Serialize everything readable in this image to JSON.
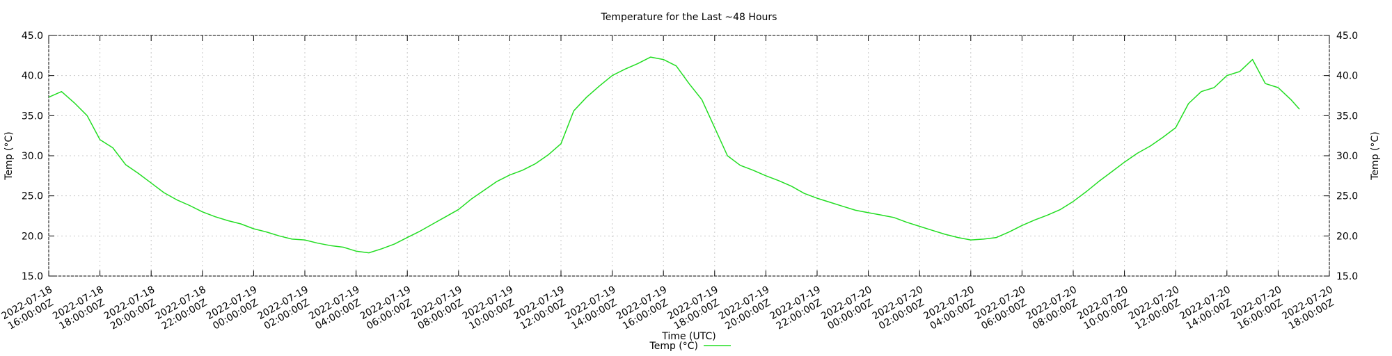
{
  "chart_data": {
    "type": "line",
    "title": "Temperature for the Last ~48 Hours",
    "x_label": "Time (UTC)",
    "y_label": "Temp (°C)",
    "y2_label": "Temp (°C)",
    "xlim": [
      "2022-07-18 16:00:00Z",
      "2022-07-20 18:00:00Z"
    ],
    "xticks": [
      "2022-07-18 16:00:00Z",
      "2022-07-18 18:00:00Z",
      "2022-07-18 20:00:00Z",
      "2022-07-18 22:00:00Z",
      "2022-07-19 00:00:00Z",
      "2022-07-19 02:00:00Z",
      "2022-07-19 04:00:00Z",
      "2022-07-19 06:00:00Z",
      "2022-07-19 08:00:00Z",
      "2022-07-19 10:00:00Z",
      "2022-07-19 12:00:00Z",
      "2022-07-19 14:00:00Z",
      "2022-07-19 16:00:00Z",
      "2022-07-19 18:00:00Z",
      "2022-07-19 20:00:00Z",
      "2022-07-19 22:00:00Z",
      "2022-07-20 00:00:00Z",
      "2022-07-20 02:00:00Z",
      "2022-07-20 04:00:00Z",
      "2022-07-20 06:00:00Z",
      "2022-07-20 08:00:00Z",
      "2022-07-20 10:00:00Z",
      "2022-07-20 12:00:00Z",
      "2022-07-20 14:00:00Z",
      "2022-07-20 16:00:00Z",
      "2022-07-20 18:00:00Z"
    ],
    "ylim": [
      15,
      45
    ],
    "yticks": [
      {
        "value": 15,
        "label": "15.0"
      },
      {
        "value": 20,
        "label": "20.0"
      },
      {
        "value": 25,
        "label": "25.0"
      },
      {
        "value": 30,
        "label": "30.0"
      },
      {
        "value": 35,
        "label": "35.0"
      },
      {
        "value": 40,
        "label": "40.0"
      },
      {
        "value": 45,
        "label": "45.0"
      }
    ],
    "y2lim": [
      15,
      45
    ],
    "y2ticks": [
      {
        "value": 15,
        "label": "15.0"
      },
      {
        "value": 20,
        "label": "20.0"
      },
      {
        "value": 25,
        "label": "25.0"
      },
      {
        "value": 30,
        "label": "30.0"
      },
      {
        "value": 35,
        "label": "35.0"
      },
      {
        "value": 40,
        "label": "40.0"
      },
      {
        "value": 45,
        "label": "45.0"
      }
    ],
    "grid": true,
    "x": [
      "2022-07-18 16:00:00Z",
      "2022-07-18 16:30:00Z",
      "2022-07-18 17:00:00Z",
      "2022-07-18 17:30:00Z",
      "2022-07-18 18:00:00Z",
      "2022-07-18 18:30:00Z",
      "2022-07-18 19:00:00Z",
      "2022-07-18 19:30:00Z",
      "2022-07-18 20:00:00Z",
      "2022-07-18 20:30:00Z",
      "2022-07-18 21:00:00Z",
      "2022-07-18 21:30:00Z",
      "2022-07-18 22:00:00Z",
      "2022-07-18 22:30:00Z",
      "2022-07-18 23:00:00Z",
      "2022-07-18 23:30:00Z",
      "2022-07-19 00:00:00Z",
      "2022-07-19 00:30:00Z",
      "2022-07-19 01:00:00Z",
      "2022-07-19 01:30:00Z",
      "2022-07-19 02:00:00Z",
      "2022-07-19 02:30:00Z",
      "2022-07-19 03:00:00Z",
      "2022-07-19 03:30:00Z",
      "2022-07-19 04:00:00Z",
      "2022-07-19 04:30:00Z",
      "2022-07-19 05:00:00Z",
      "2022-07-19 05:30:00Z",
      "2022-07-19 06:00:00Z",
      "2022-07-19 06:30:00Z",
      "2022-07-19 07:00:00Z",
      "2022-07-19 07:30:00Z",
      "2022-07-19 08:00:00Z",
      "2022-07-19 08:30:00Z",
      "2022-07-19 09:00:00Z",
      "2022-07-19 09:30:00Z",
      "2022-07-19 10:00:00Z",
      "2022-07-19 10:30:00Z",
      "2022-07-19 11:00:00Z",
      "2022-07-19 11:30:00Z",
      "2022-07-19 12:00:00Z",
      "2022-07-19 12:30:00Z",
      "2022-07-19 13:00:00Z",
      "2022-07-19 13:30:00Z",
      "2022-07-19 14:00:00Z",
      "2022-07-19 14:30:00Z",
      "2022-07-19 15:00:00Z",
      "2022-07-19 15:30:00Z",
      "2022-07-19 16:00:00Z",
      "2022-07-19 16:30:00Z",
      "2022-07-19 17:00:00Z",
      "2022-07-19 17:30:00Z",
      "2022-07-19 18:00:00Z",
      "2022-07-19 18:30:00Z",
      "2022-07-19 19:00:00Z",
      "2022-07-19 19:30:00Z",
      "2022-07-19 20:00:00Z",
      "2022-07-19 20:30:00Z",
      "2022-07-19 21:00:00Z",
      "2022-07-19 21:30:00Z",
      "2022-07-19 22:00:00Z",
      "2022-07-19 22:30:00Z",
      "2022-07-19 23:00:00Z",
      "2022-07-19 23:30:00Z",
      "2022-07-20 00:00:00Z",
      "2022-07-20 00:30:00Z",
      "2022-07-20 01:00:00Z",
      "2022-07-20 01:30:00Z",
      "2022-07-20 02:00:00Z",
      "2022-07-20 02:30:00Z",
      "2022-07-20 03:00:00Z",
      "2022-07-20 03:30:00Z",
      "2022-07-20 04:00:00Z",
      "2022-07-20 04:30:00Z",
      "2022-07-20 05:00:00Z",
      "2022-07-20 05:30:00Z",
      "2022-07-20 06:00:00Z",
      "2022-07-20 06:30:00Z",
      "2022-07-20 07:00:00Z",
      "2022-07-20 07:30:00Z",
      "2022-07-20 08:00:00Z",
      "2022-07-20 08:30:00Z",
      "2022-07-20 09:00:00Z",
      "2022-07-20 09:30:00Z",
      "2022-07-20 10:00:00Z",
      "2022-07-20 10:30:00Z",
      "2022-07-20 11:00:00Z",
      "2022-07-20 11:30:00Z",
      "2022-07-20 12:00:00Z",
      "2022-07-20 12:30:00Z",
      "2022-07-20 13:00:00Z",
      "2022-07-20 13:30:00Z",
      "2022-07-20 14:00:00Z",
      "2022-07-20 14:30:00Z",
      "2022-07-20 15:00:00Z",
      "2022-07-20 15:30:00Z",
      "2022-07-20 16:00:00Z",
      "2022-07-20 16:30:00Z",
      "2022-07-20 16:50:00Z"
    ],
    "series": [
      {
        "name": "Temp (°C)",
        "color": "#22dd22",
        "values": [
          37.3,
          38.0,
          36.6,
          35.0,
          32.0,
          31.0,
          28.9,
          27.8,
          26.6,
          25.4,
          24.5,
          23.8,
          23.0,
          22.4,
          21.9,
          21.5,
          20.9,
          20.5,
          20.0,
          19.6,
          19.5,
          19.1,
          18.8,
          18.6,
          18.1,
          17.9,
          18.4,
          19.0,
          19.8,
          20.6,
          21.5,
          22.4,
          23.3,
          24.6,
          25.7,
          26.8,
          27.6,
          28.2,
          29.0,
          30.1,
          31.5,
          35.6,
          37.3,
          38.7,
          40.0,
          40.8,
          41.5,
          42.3,
          42.0,
          41.2,
          39.0,
          37.0,
          33.5,
          30.0,
          28.8,
          28.2,
          27.5,
          26.9,
          26.2,
          25.3,
          24.7,
          24.2,
          23.7,
          23.2,
          22.9,
          22.6,
          22.3,
          21.7,
          21.2,
          20.7,
          20.2,
          19.8,
          19.5,
          19.6,
          19.8,
          20.5,
          21.3,
          22.0,
          22.6,
          23.3,
          24.3,
          25.5,
          26.8,
          28.0,
          29.2,
          30.3,
          31.2,
          32.3,
          33.5,
          36.5,
          38.0,
          38.5,
          40.0,
          40.5,
          42.0,
          39.0,
          38.5,
          37.0,
          35.8
        ]
      }
    ]
  }
}
